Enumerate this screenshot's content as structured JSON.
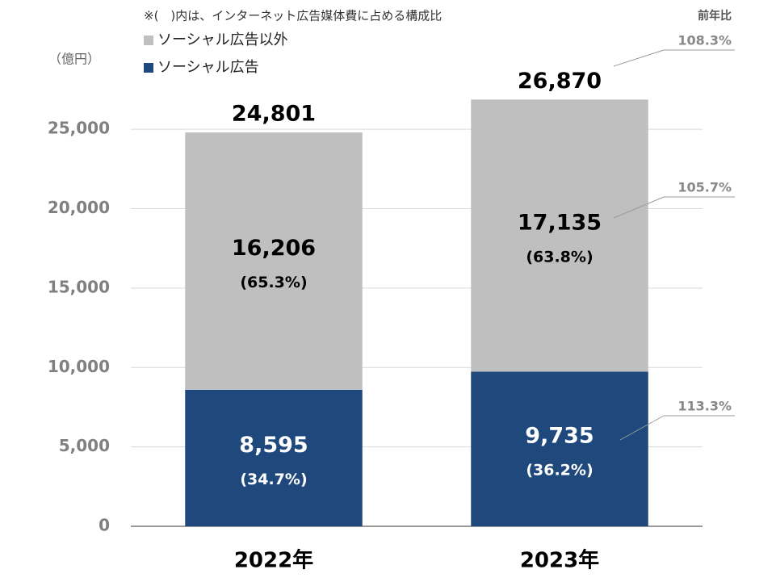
{
  "chart_data": {
    "type": "stacked_bar",
    "note": "※(　)内は、インターネット広告媒体費に占める構成比",
    "y_unit": "（億円）",
    "yoy_title": "前年比",
    "categories": [
      "2022年",
      "2023年"
    ],
    "ylim": [
      0,
      27500
    ],
    "yticks": [
      0,
      {
        "value": 5000,
        "label": "5,000"
      },
      {
        "value": 10000,
        "label": "10,000"
      },
      {
        "value": 15000,
        "label": "15,000"
      },
      {
        "value": 20000,
        "label": "20,000"
      },
      {
        "value": 25000,
        "label": "25,000"
      }
    ],
    "grid": true,
    "series": [
      {
        "name": "ソーシャル広告",
        "color": "#1f497d",
        "label_color": "#ffffff",
        "values": [
          8595,
          9735
        ],
        "value_labels": [
          "8,595",
          "9,735"
        ],
        "share_values": [
          34.7,
          36.2
        ],
        "share_labels": [
          "(34.7%)",
          "(36.2%)"
        ],
        "yoy": {
          "value": 113.3,
          "label": "113.3%"
        }
      },
      {
        "name": "ソーシャル広告以外",
        "color": "#bfbfbf",
        "label_color": "#000000",
        "values": [
          16206,
          17135
        ],
        "value_labels": [
          "16,206",
          "17,135"
        ],
        "share_values": [
          65.3,
          63.8
        ],
        "share_labels": [
          "(65.3%)",
          "(63.8%)"
        ],
        "yoy": {
          "value": 105.7,
          "label": "105.7%"
        }
      }
    ],
    "totals": {
      "values": [
        24801,
        26870
      ],
      "value_labels": [
        "24,801",
        "26,870"
      ],
      "yoy": {
        "value": 108.3,
        "label": "108.3%"
      }
    }
  }
}
